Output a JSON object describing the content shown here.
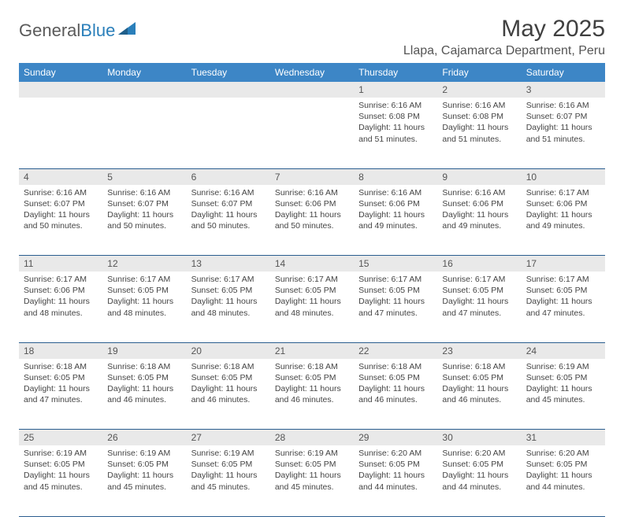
{
  "logo": {
    "text_gray": "General",
    "text_blue": "Blue"
  },
  "title": "May 2025",
  "location": "Llapa, Cajamarca Department, Peru",
  "colors": {
    "header_bg": "#3d86c6",
    "header_text": "#ffffff",
    "daynum_bg": "#e9e9e9",
    "row_border": "#2a5d8f",
    "body_text": "#444444",
    "title_text": "#404040"
  },
  "day_headers": [
    "Sunday",
    "Monday",
    "Tuesday",
    "Wednesday",
    "Thursday",
    "Friday",
    "Saturday"
  ],
  "weeks": [
    {
      "nums": [
        "",
        "",
        "",
        "",
        "1",
        "2",
        "3"
      ],
      "cells": [
        null,
        null,
        null,
        null,
        {
          "sunrise": "6:16 AM",
          "sunset": "6:08 PM",
          "daylight": "11 hours and 51 minutes."
        },
        {
          "sunrise": "6:16 AM",
          "sunset": "6:08 PM",
          "daylight": "11 hours and 51 minutes."
        },
        {
          "sunrise": "6:16 AM",
          "sunset": "6:07 PM",
          "daylight": "11 hours and 51 minutes."
        }
      ]
    },
    {
      "nums": [
        "4",
        "5",
        "6",
        "7",
        "8",
        "9",
        "10"
      ],
      "cells": [
        {
          "sunrise": "6:16 AM",
          "sunset": "6:07 PM",
          "daylight": "11 hours and 50 minutes."
        },
        {
          "sunrise": "6:16 AM",
          "sunset": "6:07 PM",
          "daylight": "11 hours and 50 minutes."
        },
        {
          "sunrise": "6:16 AM",
          "sunset": "6:07 PM",
          "daylight": "11 hours and 50 minutes."
        },
        {
          "sunrise": "6:16 AM",
          "sunset": "6:06 PM",
          "daylight": "11 hours and 50 minutes."
        },
        {
          "sunrise": "6:16 AM",
          "sunset": "6:06 PM",
          "daylight": "11 hours and 49 minutes."
        },
        {
          "sunrise": "6:16 AM",
          "sunset": "6:06 PM",
          "daylight": "11 hours and 49 minutes."
        },
        {
          "sunrise": "6:17 AM",
          "sunset": "6:06 PM",
          "daylight": "11 hours and 49 minutes."
        }
      ]
    },
    {
      "nums": [
        "11",
        "12",
        "13",
        "14",
        "15",
        "16",
        "17"
      ],
      "cells": [
        {
          "sunrise": "6:17 AM",
          "sunset": "6:06 PM",
          "daylight": "11 hours and 48 minutes."
        },
        {
          "sunrise": "6:17 AM",
          "sunset": "6:05 PM",
          "daylight": "11 hours and 48 minutes."
        },
        {
          "sunrise": "6:17 AM",
          "sunset": "6:05 PM",
          "daylight": "11 hours and 48 minutes."
        },
        {
          "sunrise": "6:17 AM",
          "sunset": "6:05 PM",
          "daylight": "11 hours and 48 minutes."
        },
        {
          "sunrise": "6:17 AM",
          "sunset": "6:05 PM",
          "daylight": "11 hours and 47 minutes."
        },
        {
          "sunrise": "6:17 AM",
          "sunset": "6:05 PM",
          "daylight": "11 hours and 47 minutes."
        },
        {
          "sunrise": "6:17 AM",
          "sunset": "6:05 PM",
          "daylight": "11 hours and 47 minutes."
        }
      ]
    },
    {
      "nums": [
        "18",
        "19",
        "20",
        "21",
        "22",
        "23",
        "24"
      ],
      "cells": [
        {
          "sunrise": "6:18 AM",
          "sunset": "6:05 PM",
          "daylight": "11 hours and 47 minutes."
        },
        {
          "sunrise": "6:18 AM",
          "sunset": "6:05 PM",
          "daylight": "11 hours and 46 minutes."
        },
        {
          "sunrise": "6:18 AM",
          "sunset": "6:05 PM",
          "daylight": "11 hours and 46 minutes."
        },
        {
          "sunrise": "6:18 AM",
          "sunset": "6:05 PM",
          "daylight": "11 hours and 46 minutes."
        },
        {
          "sunrise": "6:18 AM",
          "sunset": "6:05 PM",
          "daylight": "11 hours and 46 minutes."
        },
        {
          "sunrise": "6:18 AM",
          "sunset": "6:05 PM",
          "daylight": "11 hours and 46 minutes."
        },
        {
          "sunrise": "6:19 AM",
          "sunset": "6:05 PM",
          "daylight": "11 hours and 45 minutes."
        }
      ]
    },
    {
      "nums": [
        "25",
        "26",
        "27",
        "28",
        "29",
        "30",
        "31"
      ],
      "cells": [
        {
          "sunrise": "6:19 AM",
          "sunset": "6:05 PM",
          "daylight": "11 hours and 45 minutes."
        },
        {
          "sunrise": "6:19 AM",
          "sunset": "6:05 PM",
          "daylight": "11 hours and 45 minutes."
        },
        {
          "sunrise": "6:19 AM",
          "sunset": "6:05 PM",
          "daylight": "11 hours and 45 minutes."
        },
        {
          "sunrise": "6:19 AM",
          "sunset": "6:05 PM",
          "daylight": "11 hours and 45 minutes."
        },
        {
          "sunrise": "6:20 AM",
          "sunset": "6:05 PM",
          "daylight": "11 hours and 44 minutes."
        },
        {
          "sunrise": "6:20 AM",
          "sunset": "6:05 PM",
          "daylight": "11 hours and 44 minutes."
        },
        {
          "sunrise": "6:20 AM",
          "sunset": "6:05 PM",
          "daylight": "11 hours and 44 minutes."
        }
      ]
    }
  ],
  "labels": {
    "sunrise": "Sunrise: ",
    "sunset": "Sunset: ",
    "daylight": "Daylight: "
  }
}
